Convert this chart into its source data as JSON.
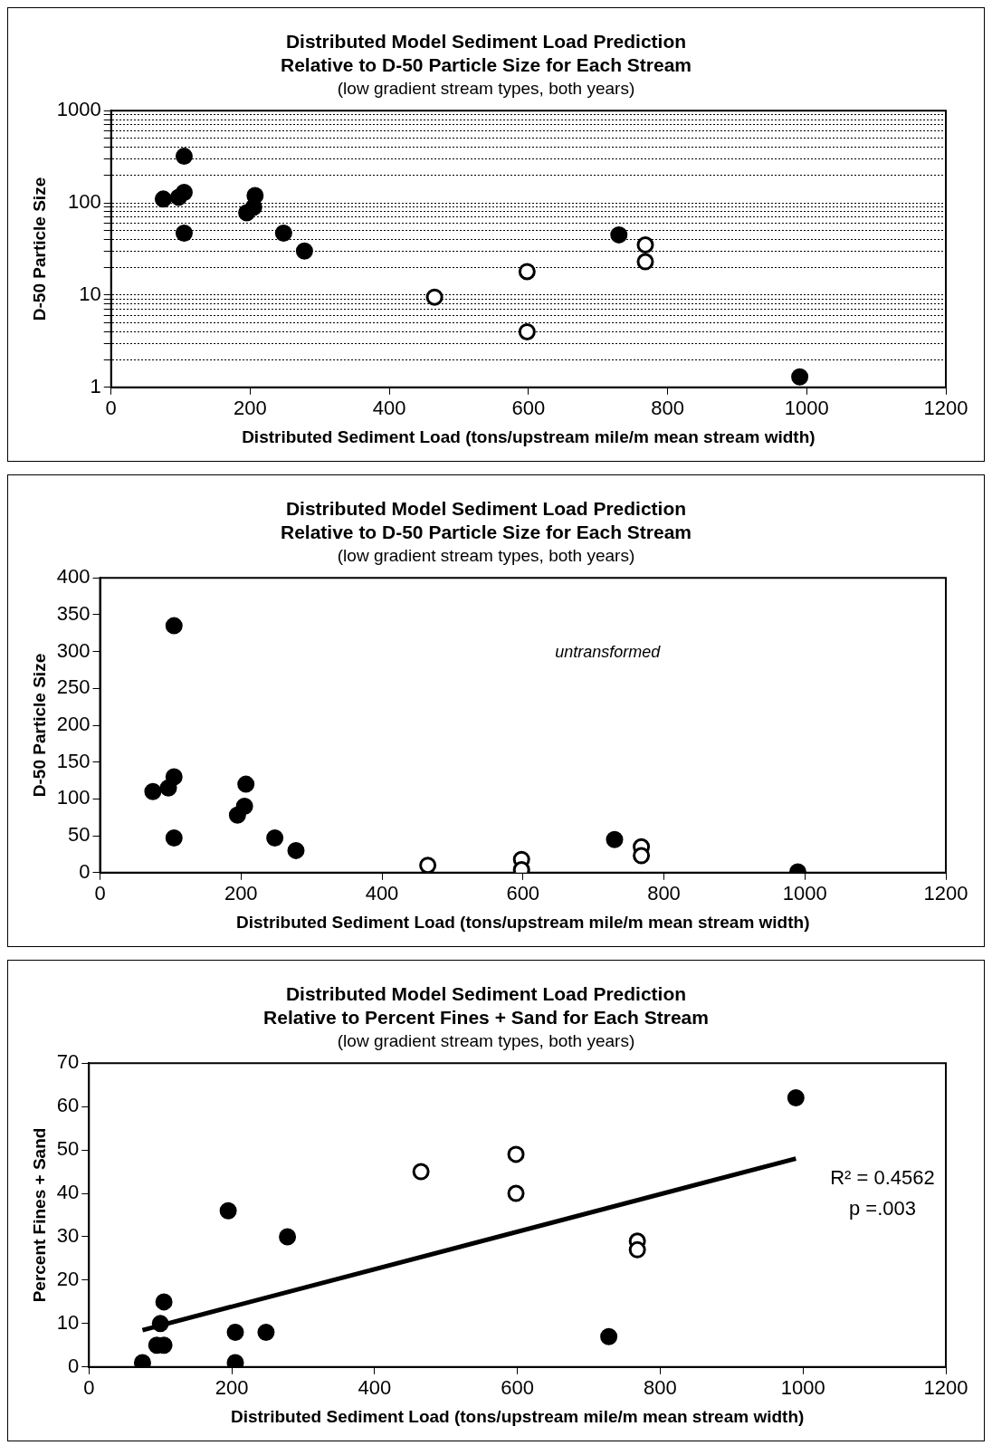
{
  "chart_data": [
    {
      "type": "scatter",
      "title": "Distributed Model Sediment Load Prediction\nRelative to D-50 Particle Size for Each Stream",
      "subtitle": "(low gradient stream types, both years)",
      "xlabel": "Distributed Sediment Load (tons/upstream mile/m mean stream width)",
      "ylabel": "D-50 Particle Size",
      "log": "y",
      "grid": "y",
      "marker": "circle",
      "xlim": [
        0,
        1200
      ],
      "xticks": [
        0,
        200,
        400,
        600,
        800,
        1000,
        1200
      ],
      "ylim": [
        1,
        1000
      ],
      "yticks": [
        1,
        {
          "value": 2,
          "label": null
        },
        {
          "value": 3,
          "label": null
        },
        {
          "value": 4,
          "label": null
        },
        {
          "value": 5,
          "label": null
        },
        {
          "value": 6,
          "label": null
        },
        {
          "value": 7,
          "label": null
        },
        {
          "value": 8,
          "label": null
        },
        {
          "value": 9,
          "label": null
        },
        10,
        {
          "value": 20,
          "label": null
        },
        {
          "value": 30,
          "label": null
        },
        {
          "value": 40,
          "label": null
        },
        {
          "value": 50,
          "label": null
        },
        {
          "value": 60,
          "label": null
        },
        {
          "value": 70,
          "label": null
        },
        {
          "value": 80,
          "label": null
        },
        {
          "value": 90,
          "label": null
        },
        100,
        {
          "value": 200,
          "label": null
        },
        {
          "value": 300,
          "label": null
        },
        {
          "value": 400,
          "label": null
        },
        {
          "value": 500,
          "label": null
        },
        {
          "value": 600,
          "label": null
        },
        {
          "value": 700,
          "label": null
        },
        {
          "value": 800,
          "label": null
        },
        {
          "value": 900,
          "label": null
        },
        1000
      ],
      "series": [
        {
          "color": "#000000",
          "x": [
            75,
            97,
            105,
            105,
            105,
            195,
            205,
            207,
            248,
            278,
            730,
            990
          ],
          "values": [
            110,
            115,
            130,
            320,
            47,
            78,
            90,
            120,
            47,
            30,
            45,
            1.3
          ]
        },
        {
          "color": "#ffffff",
          "x": [
            465,
            598,
            598,
            768,
            768
          ],
          "values": [
            9.5,
            18,
            4,
            35,
            23
          ]
        }
      ]
    },
    {
      "type": "scatter",
      "title": "Distributed Model Sediment Load Prediction\nRelative to D-50 Particle Size for Each Stream",
      "subtitle": "(low gradient stream types, both years)",
      "xlabel": "Distributed Sediment Load (tons/upstream mile/m mean stream width)",
      "ylabel": "D-50 Particle Size",
      "marker": "circle",
      "annotations": [
        "untransformed"
      ],
      "xlim": [
        0,
        1200
      ],
      "xticks": [
        0,
        200,
        400,
        600,
        800,
        1000,
        1200
      ],
      "ylim": [
        0,
        400
      ],
      "yticks": [
        0,
        50,
        100,
        150,
        200,
        250,
        300,
        350,
        400
      ],
      "series": [
        {
          "color": "#000000",
          "x": [
            75,
            97,
            105,
            105,
            105,
            195,
            205,
            207,
            248,
            278,
            730,
            990
          ],
          "values": [
            110,
            115,
            130,
            335,
            47,
            78,
            90,
            120,
            47,
            30,
            45,
            1
          ]
        },
        {
          "color": "#ffffff",
          "x": [
            465,
            598,
            598,
            768,
            768
          ],
          "values": [
            10,
            18,
            4,
            35,
            23
          ]
        }
      ]
    },
    {
      "type": "scatter",
      "title": "Distributed Model Sediment Load Prediction\nRelative to Percent Fines + Sand for Each Stream",
      "subtitle": "(low gradient stream types, both years)",
      "xlabel": "Distributed Sediment Load (tons/upstream mile/m mean stream width)",
      "ylabel": "Percent Fines + Sand",
      "marker": "circle",
      "annotations": [
        "R² = 0.4562",
        "p =.003"
      ],
      "xlim": [
        0,
        1200
      ],
      "xticks": [
        0,
        200,
        400,
        600,
        800,
        1000,
        1200
      ],
      "ylim": [
        0,
        70
      ],
      "yticks": [
        0,
        10,
        20,
        30,
        40,
        50,
        60,
        70
      ],
      "series": [
        {
          "color": "#000000",
          "x": [
            75,
            95,
            105,
            100,
            105,
            195,
            205,
            205,
            248,
            278,
            728,
            990
          ],
          "values": [
            1,
            5,
            5,
            10,
            15,
            36,
            8,
            1,
            8,
            30,
            7,
            62
          ]
        },
        {
          "color": "#ffffff",
          "x": [
            465,
            598,
            598,
            768,
            768
          ],
          "values": [
            45,
            49,
            40,
            29,
            27
          ]
        },
        {
          "type": "line",
          "color": "#000000",
          "marker": "none",
          "x": [
            75,
            990
          ],
          "values": [
            8.5,
            48
          ]
        }
      ]
    }
  ]
}
